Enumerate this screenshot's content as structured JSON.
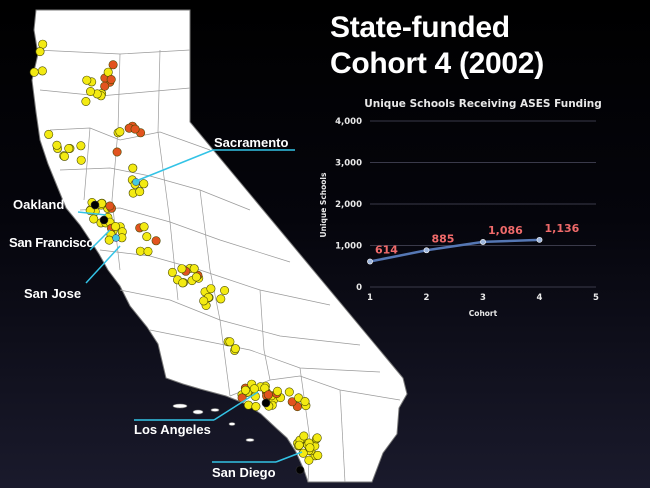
{
  "slide": {
    "title_line1": "State-funded",
    "title_line2": "Cohort 4 (2002)"
  },
  "map": {
    "cities": {
      "sacramento": "Sacramento",
      "oakland": "Oakland",
      "san_francisco": "San Francisco",
      "san_jose": "San Jose",
      "los_angeles": "Los Angeles",
      "san_diego": "San Diego"
    },
    "colors": {
      "land": "#ffffff",
      "border": "#7a7a7a",
      "school_yellow": "#f3ea12",
      "school_orange": "#e2531f",
      "school_black": "#000000",
      "school_cyan": "#46c8de",
      "leader_line": "#33c3e6"
    }
  },
  "chart_data": {
    "type": "line",
    "title": "Unique Schools Receiving ASES Funding",
    "xlabel": "Cohort",
    "ylabel": "Unique Schools",
    "x_ticks": [
      "1",
      "2",
      "3",
      "4",
      "5"
    ],
    "y_ticks": [
      "0",
      "1,000",
      "2,000",
      "3,000",
      "4,000"
    ],
    "xlim": [
      1,
      5
    ],
    "ylim": [
      0,
      4000
    ],
    "grid": true,
    "series": [
      {
        "x": [
          1,
          2,
          3,
          4
        ],
        "values": [
          614,
          885,
          1086,
          1136
        ]
      }
    ],
    "data_labels": [
      "614",
      "885",
      "1,086",
      "1,136"
    ],
    "colors": {
      "line": "#5577b4",
      "point": "#9fb6dc",
      "label": "#f06a6a",
      "grid": "#3a3a4a",
      "text": "#e8e8e8"
    }
  }
}
